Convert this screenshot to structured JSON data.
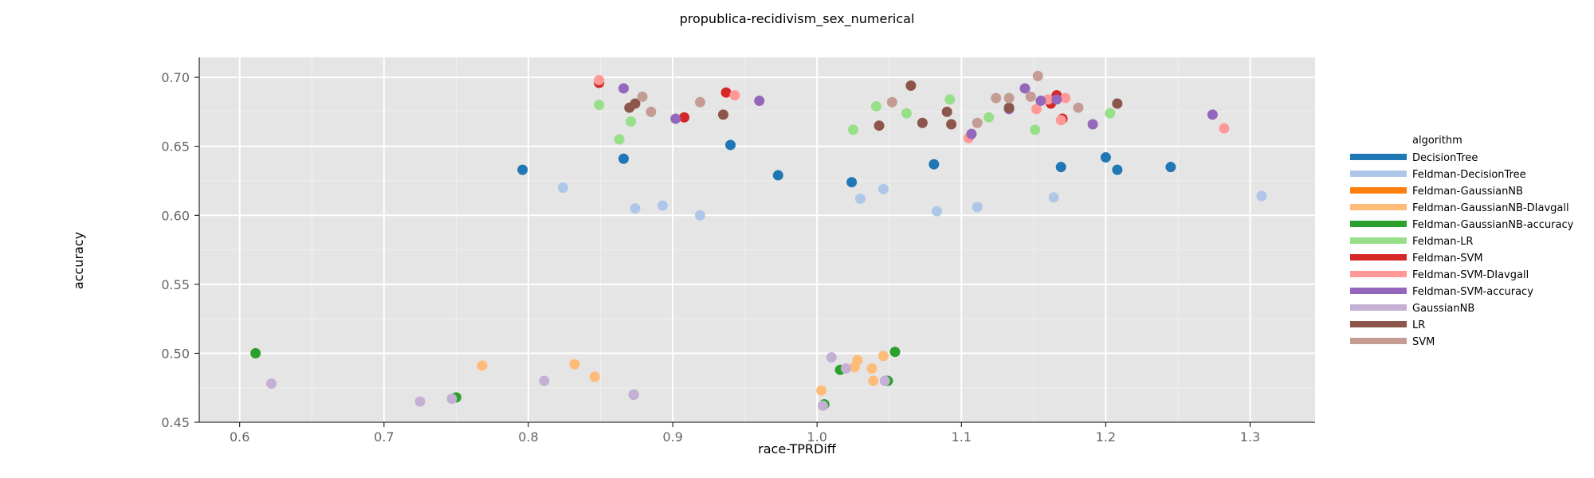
{
  "chart_data": {
    "type": "scatter",
    "title": "propublica-recidivism_sex_numerical",
    "xlabel": "race-TPRDiff",
    "ylabel": "accuracy",
    "xlim": [
      0.572,
      1.345
    ],
    "ylim": [
      0.45,
      0.7145
    ],
    "xticks": [
      0.6,
      0.7,
      0.8,
      0.9,
      1.0,
      1.1,
      1.2,
      1.3
    ],
    "xtick_labels": [
      "0.6",
      "0.7",
      "0.8",
      "0.9",
      "1.0",
      "1.1",
      "1.2",
      "1.3"
    ],
    "yticks": [
      0.45,
      0.5,
      0.55,
      0.6,
      0.65,
      0.7
    ],
    "ytick_labels": [
      "0.45",
      "0.50",
      "0.55",
      "0.60",
      "0.65",
      "0.70"
    ],
    "grid": true,
    "legend_title": "algorithm",
    "legend_position": "right",
    "series": [
      {
        "name": "DecisionTree",
        "color": "#1f77b4",
        "points": [
          [
            0.796,
            0.633
          ],
          [
            0.866,
            0.641
          ],
          [
            0.94,
            0.651
          ],
          [
            0.973,
            0.629
          ],
          [
            1.024,
            0.624
          ],
          [
            1.081,
            0.637
          ],
          [
            1.169,
            0.635
          ],
          [
            1.2,
            0.642
          ],
          [
            1.208,
            0.633
          ],
          [
            1.245,
            0.635
          ]
        ]
      },
      {
        "name": "Feldman-DecisionTree",
        "color": "#aec7e8",
        "points": [
          [
            0.824,
            0.62
          ],
          [
            0.874,
            0.605
          ],
          [
            0.893,
            0.607
          ],
          [
            0.919,
            0.6
          ],
          [
            1.03,
            0.612
          ],
          [
            1.046,
            0.619
          ],
          [
            1.083,
            0.603
          ],
          [
            1.111,
            0.606
          ],
          [
            1.164,
            0.613
          ],
          [
            1.308,
            0.614
          ]
        ]
      },
      {
        "name": "Feldman-GaussianNB",
        "color": "#ff7f0e",
        "points": []
      },
      {
        "name": "Feldman-GaussianNB-DIavgall",
        "color": "#ffbb78",
        "points": [
          [
            0.768,
            0.491
          ],
          [
            0.832,
            0.492
          ],
          [
            0.846,
            0.483
          ],
          [
            1.003,
            0.473
          ],
          [
            1.026,
            0.49
          ],
          [
            1.028,
            0.495
          ],
          [
            1.038,
            0.489
          ],
          [
            1.039,
            0.48
          ],
          [
            1.046,
            0.498
          ]
        ]
      },
      {
        "name": "Feldman-GaussianNB-accuracy",
        "color": "#2ca02c",
        "points": [
          [
            0.611,
            0.5
          ],
          [
            0.75,
            0.468
          ],
          [
            0.873,
            0.47
          ],
          [
            1.005,
            0.463
          ],
          [
            1.016,
            0.488
          ],
          [
            1.049,
            0.48
          ],
          [
            1.054,
            0.501
          ]
        ]
      },
      {
        "name": "Feldman-LR",
        "color": "#98df8a",
        "points": [
          [
            0.849,
            0.68
          ],
          [
            0.863,
            0.655
          ],
          [
            0.871,
            0.668
          ],
          [
            1.025,
            0.662
          ],
          [
            1.041,
            0.679
          ],
          [
            1.062,
            0.674
          ],
          [
            1.092,
            0.684
          ],
          [
            1.119,
            0.671
          ],
          [
            1.151,
            0.662
          ],
          [
            1.203,
            0.674
          ]
        ]
      },
      {
        "name": "Feldman-SVM",
        "color": "#d62728",
        "points": [
          [
            0.849,
            0.696
          ],
          [
            0.908,
            0.671
          ],
          [
            0.937,
            0.689
          ],
          [
            1.162,
            0.681
          ],
          [
            1.166,
            0.687
          ],
          [
            1.17,
            0.67
          ]
        ]
      },
      {
        "name": "Feldman-SVM-DIavgall",
        "color": "#ff9896",
        "points": [
          [
            0.849,
            0.698
          ],
          [
            0.943,
            0.687
          ],
          [
            1.105,
            0.656
          ],
          [
            1.152,
            0.677
          ],
          [
            1.16,
            0.684
          ],
          [
            1.169,
            0.669
          ],
          [
            1.172,
            0.685
          ],
          [
            1.282,
            0.663
          ]
        ]
      },
      {
        "name": "Feldman-SVM-accuracy",
        "color": "#9467bd",
        "points": [
          [
            0.866,
            0.692
          ],
          [
            0.902,
            0.67
          ],
          [
            0.96,
            0.683
          ],
          [
            1.107,
            0.659
          ],
          [
            1.133,
            0.677
          ],
          [
            1.144,
            0.692
          ],
          [
            1.155,
            0.683
          ],
          [
            1.166,
            0.684
          ],
          [
            1.191,
            0.666
          ],
          [
            1.274,
            0.673
          ]
        ]
      },
      {
        "name": "GaussianNB",
        "color": "#c5b0d5",
        "points": [
          [
            0.622,
            0.478
          ],
          [
            0.725,
            0.465
          ],
          [
            0.747,
            0.467
          ],
          [
            0.811,
            0.48
          ],
          [
            0.873,
            0.47
          ],
          [
            1.004,
            0.462
          ],
          [
            1.01,
            0.497
          ],
          [
            1.02,
            0.489
          ],
          [
            1.047,
            0.48
          ]
        ]
      },
      {
        "name": "LR",
        "color": "#8c564b",
        "points": [
          [
            0.87,
            0.678
          ],
          [
            0.874,
            0.681
          ],
          [
            0.935,
            0.673
          ],
          [
            1.043,
            0.665
          ],
          [
            1.065,
            0.694
          ],
          [
            1.073,
            0.667
          ],
          [
            1.09,
            0.675
          ],
          [
            1.093,
            0.666
          ],
          [
            1.133,
            0.678
          ],
          [
            1.208,
            0.681
          ]
        ]
      },
      {
        "name": "SVM",
        "color": "#c49c94",
        "points": [
          [
            0.879,
            0.686
          ],
          [
            0.885,
            0.675
          ],
          [
            0.919,
            0.682
          ],
          [
            1.052,
            0.682
          ],
          [
            1.111,
            0.667
          ],
          [
            1.124,
            0.685
          ],
          [
            1.133,
            0.685
          ],
          [
            1.148,
            0.686
          ],
          [
            1.153,
            0.701
          ],
          [
            1.181,
            0.678
          ]
        ]
      }
    ]
  }
}
